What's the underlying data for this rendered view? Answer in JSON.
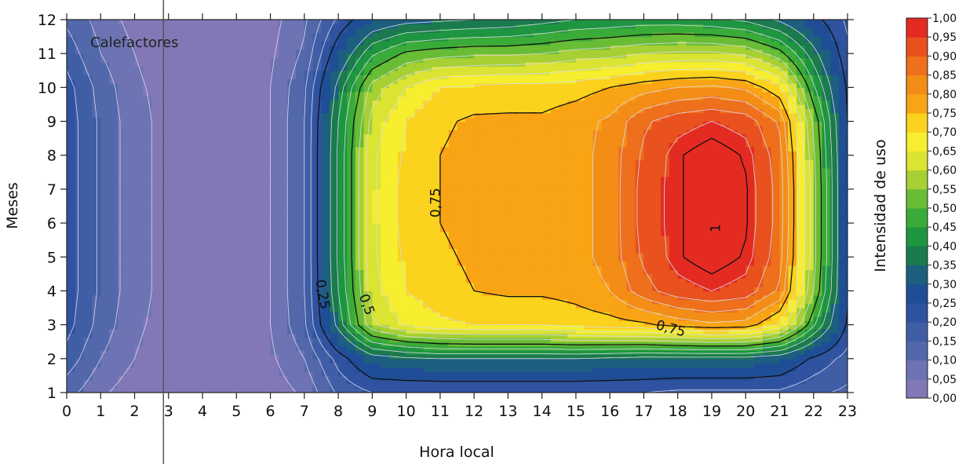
{
  "chart_data": {
    "type": "heatmap",
    "subtype": "filled-contour",
    "annotation": "Calefactores",
    "xlabel": "Hora local",
    "ylabel": "Meses",
    "colorbar_label": "Intensidad de uso",
    "xlim": [
      0,
      23
    ],
    "ylim": [
      1,
      12
    ],
    "x_ticks": [
      "0",
      "1",
      "2",
      "3",
      "4",
      "5",
      "6",
      "7",
      "8",
      "9",
      "10",
      "11",
      "12",
      "13",
      "14",
      "15",
      "16",
      "17",
      "18",
      "19",
      "20",
      "21",
      "22",
      "23"
    ],
    "y_ticks": [
      "1",
      "2",
      "3",
      "4",
      "5",
      "6",
      "7",
      "8",
      "9",
      "10",
      "11",
      "12"
    ],
    "colorbar_ticks": [
      "1,00",
      "0,95",
      "0,90",
      "0,85",
      "0,80",
      "0,75",
      "0,70",
      "0,65",
      "0,60",
      "0,55",
      "0,50",
      "0,45",
      "0,40",
      "0,35",
      "0,30",
      "0,25",
      "0,20",
      "0,15",
      "0,10",
      "0,05",
      "0,00"
    ],
    "level_colors": [
      "#8278b8",
      "#6d73b3",
      "#5268ab",
      "#3f5ea6",
      "#2f53a0",
      "#1f4d96",
      "#1c5f7f",
      "#1b7a4e",
      "#1e9540",
      "#3aab38",
      "#69bd35",
      "#a6d033",
      "#dbe433",
      "#f6ee2e",
      "#fbd21d",
      "#f9a415",
      "#f38d16",
      "#ee6f1c",
      "#e9511e",
      "#e42b22"
    ],
    "contour_labels": [
      "0,25",
      "0,5",
      "0,75",
      "0,75",
      "1"
    ],
    "grid": false,
    "vertical_marker_x": 2.85,
    "series": [
      {
        "name": "",
        "x": [
          0,
          1,
          2,
          3,
          4,
          5,
          6,
          7,
          8,
          9,
          10,
          11,
          12,
          13,
          14,
          15,
          16,
          17,
          18,
          19,
          20,
          21,
          22,
          23
        ],
        "months": [
          1,
          2,
          3,
          4,
          5,
          6,
          7,
          8,
          9,
          10,
          11,
          12
        ],
        "z_by_month": [
          [
            0.12,
            0.06,
            0.02,
            0.01,
            0.0,
            0.0,
            0.02,
            0.06,
            0.16,
            0.2,
            0.2,
            0.2,
            0.2,
            0.2,
            0.2,
            0.2,
            0.2,
            0.2,
            0.19,
            0.19,
            0.19,
            0.19,
            0.16,
            0.14
          ],
          [
            0.18,
            0.1,
            0.05,
            0.02,
            0.01,
            0.01,
            0.04,
            0.1,
            0.22,
            0.32,
            0.34,
            0.35,
            0.35,
            0.35,
            0.35,
            0.35,
            0.34,
            0.33,
            0.33,
            0.33,
            0.33,
            0.31,
            0.24,
            0.18
          ],
          [
            0.22,
            0.13,
            0.06,
            0.03,
            0.01,
            0.01,
            0.05,
            0.14,
            0.37,
            0.59,
            0.66,
            0.69,
            0.7,
            0.7,
            0.7,
            0.72,
            0.73,
            0.74,
            0.77,
            0.79,
            0.78,
            0.69,
            0.46,
            0.24
          ],
          [
            0.23,
            0.14,
            0.07,
            0.03,
            0.01,
            0.01,
            0.05,
            0.15,
            0.4,
            0.63,
            0.7,
            0.73,
            0.75,
            0.76,
            0.76,
            0.77,
            0.8,
            0.88,
            0.93,
            0.95,
            0.93,
            0.84,
            0.55,
            0.26
          ],
          [
            0.23,
            0.14,
            0.07,
            0.03,
            0.01,
            0.01,
            0.05,
            0.15,
            0.41,
            0.64,
            0.71,
            0.74,
            0.76,
            0.77,
            0.77,
            0.78,
            0.82,
            0.91,
            0.97,
            1.0,
            0.97,
            0.87,
            0.57,
            0.26
          ],
          [
            0.23,
            0.14,
            0.07,
            0.03,
            0.01,
            0.01,
            0.05,
            0.15,
            0.41,
            0.64,
            0.72,
            0.75,
            0.77,
            0.77,
            0.77,
            0.78,
            0.82,
            0.92,
            0.97,
            1.0,
            0.98,
            0.88,
            0.57,
            0.26
          ],
          [
            0.23,
            0.14,
            0.07,
            0.03,
            0.01,
            0.01,
            0.05,
            0.15,
            0.41,
            0.64,
            0.72,
            0.75,
            0.77,
            0.77,
            0.77,
            0.78,
            0.82,
            0.92,
            0.97,
            1.0,
            0.98,
            0.88,
            0.57,
            0.26
          ],
          [
            0.23,
            0.14,
            0.07,
            0.03,
            0.01,
            0.01,
            0.05,
            0.15,
            0.41,
            0.64,
            0.71,
            0.75,
            0.77,
            0.77,
            0.77,
            0.78,
            0.82,
            0.91,
            0.97,
            1.0,
            0.97,
            0.87,
            0.56,
            0.26
          ],
          [
            0.23,
            0.14,
            0.07,
            0.03,
            0.01,
            0.01,
            0.05,
            0.15,
            0.4,
            0.62,
            0.7,
            0.74,
            0.76,
            0.76,
            0.76,
            0.78,
            0.81,
            0.89,
            0.93,
            0.95,
            0.93,
            0.84,
            0.54,
            0.25
          ],
          [
            0.22,
            0.13,
            0.06,
            0.03,
            0.01,
            0.01,
            0.05,
            0.14,
            0.37,
            0.57,
            0.65,
            0.7,
            0.71,
            0.72,
            0.72,
            0.73,
            0.75,
            0.78,
            0.8,
            0.81,
            0.79,
            0.71,
            0.46,
            0.24
          ],
          [
            0.18,
            0.1,
            0.05,
            0.02,
            0.01,
            0.01,
            0.04,
            0.11,
            0.29,
            0.44,
            0.51,
            0.53,
            0.54,
            0.54,
            0.55,
            0.57,
            0.58,
            0.6,
            0.61,
            0.61,
            0.59,
            0.52,
            0.37,
            0.21
          ],
          [
            0.14,
            0.08,
            0.03,
            0.02,
            0.01,
            0.01,
            0.03,
            0.09,
            0.21,
            0.3,
            0.33,
            0.34,
            0.35,
            0.36,
            0.38,
            0.4,
            0.41,
            0.42,
            0.42,
            0.41,
            0.39,
            0.34,
            0.27,
            0.19
          ]
        ]
      }
    ]
  }
}
